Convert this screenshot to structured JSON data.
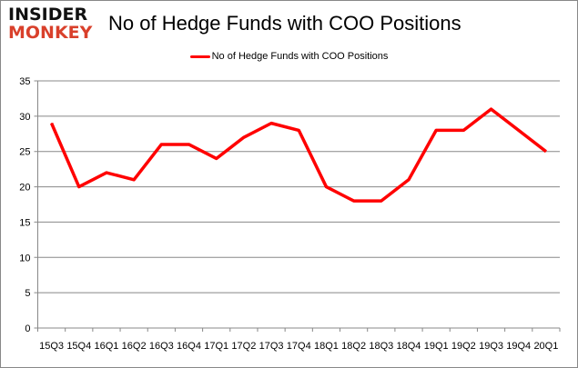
{
  "logo": {
    "line1": "INSIDER",
    "line2": "MONKEY"
  },
  "chart_data": {
    "type": "line",
    "title": "No of Hedge Funds with COO Positions",
    "xlabel": "",
    "ylabel": "",
    "categories": [
      "15Q3",
      "15Q4",
      "16Q1",
      "16Q2",
      "16Q3",
      "16Q4",
      "17Q1",
      "17Q2",
      "17Q3",
      "17Q4",
      "18Q1",
      "18Q2",
      "18Q3",
      "18Q4",
      "19Q1",
      "19Q2",
      "19Q3",
      "19Q4",
      "20Q1"
    ],
    "series": [
      {
        "name": "No of Hedge Funds with COO Positions",
        "values": [
          29,
          20,
          22,
          21,
          26,
          26,
          24,
          27,
          29,
          28,
          20,
          18,
          18,
          21,
          28,
          28,
          31,
          28,
          25
        ],
        "color": "#ff0000"
      }
    ],
    "ylim": [
      0,
      35
    ],
    "yticks": [
      0,
      5,
      10,
      15,
      20,
      25,
      30,
      35
    ],
    "grid": true,
    "legend": "top-center"
  }
}
